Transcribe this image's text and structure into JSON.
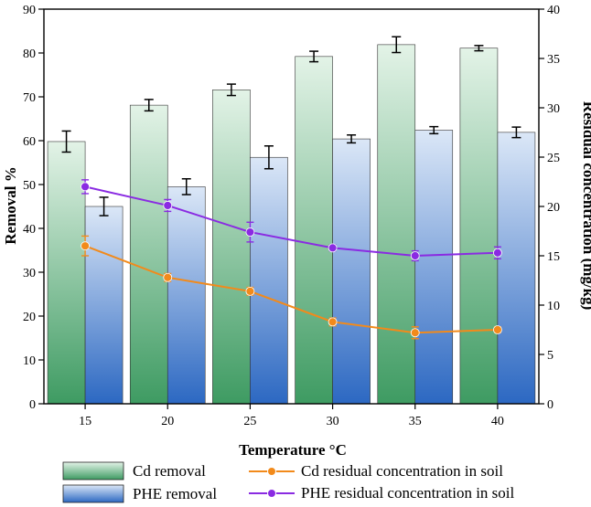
{
  "chart_data": {
    "type": "bar",
    "title": "",
    "xlabel": "Temperature °C",
    "ylabel": "Removal %",
    "y2label": "Residual concentration (mg/kg)",
    "categories": [
      "15",
      "20",
      "25",
      "30",
      "35",
      "40"
    ],
    "ylim": [
      0,
      90
    ],
    "y2lim": [
      0,
      40
    ],
    "yticks": [
      "0",
      "10",
      "20",
      "30",
      "40",
      "50",
      "60",
      "70",
      "80",
      "90"
    ],
    "y2ticks": [
      "0",
      "5",
      "10",
      "15",
      "20",
      "25",
      "30",
      "35",
      "40"
    ],
    "grid": false,
    "bar_series": [
      {
        "name": "Cd removal",
        "values": [
          59.8,
          68.1,
          71.6,
          79.2,
          81.9,
          81.1
        ],
        "errors": [
          2.4,
          1.3,
          1.3,
          1.2,
          1.8,
          0.6
        ],
        "color_top": "#e3f3e7",
        "color_bottom": "#3e9b62"
      },
      {
        "name": "PHE removal",
        "values": [
          45.0,
          49.5,
          56.2,
          60.4,
          62.4,
          61.9
        ],
        "errors": [
          2.1,
          1.8,
          2.6,
          0.9,
          0.8,
          1.2
        ],
        "color_top": "#dbe7f7",
        "color_bottom": "#2c68c2"
      }
    ],
    "line_series": [
      {
        "name": "Cd residual concentration in soil",
        "axis": "right",
        "values": [
          16.0,
          12.8,
          11.4,
          8.3,
          7.2,
          7.5
        ],
        "errors": [
          1.0,
          0.4,
          0.4,
          0.4,
          0.6,
          0.3
        ],
        "color": "#f28a1b"
      },
      {
        "name": "PHE residual concentration in soil",
        "axis": "right",
        "values": [
          22.0,
          20.1,
          17.4,
          15.8,
          15.0,
          15.3
        ],
        "errors": [
          0.7,
          0.6,
          1.0,
          0.3,
          0.5,
          0.6
        ],
        "color": "#8a2be2"
      }
    ]
  }
}
